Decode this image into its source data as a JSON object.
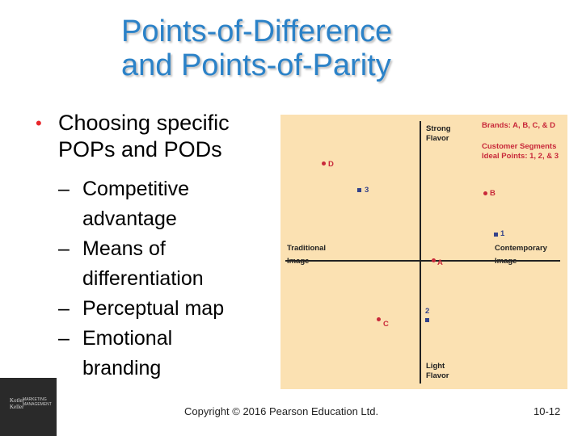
{
  "title": {
    "line1": "Points-of-Difference",
    "line2": "and Points-of-Parity"
  },
  "bullets": {
    "main_line1": "Choosing specific",
    "main_line2": "POPs and PODs",
    "subs": [
      {
        "line1": "Competitive",
        "line2": "advantage"
      },
      {
        "line1": "Means of",
        "line2": "differentiation"
      },
      {
        "line1": "Perceptual map",
        "line2": ""
      },
      {
        "line1": "Emotional",
        "line2": "branding"
      }
    ]
  },
  "perceptual_map": {
    "axes": {
      "top": [
        "Strong",
        "Flavor"
      ],
      "bottom": [
        "Light",
        "Flavor"
      ],
      "left": [
        "Traditional",
        "Image"
      ],
      "right": [
        "Contemporary",
        "Image"
      ]
    },
    "legend": {
      "brands": "Brands: A, B, C, & D",
      "segments_line1": "Customer Segments",
      "segments_line2": "Ideal Points: 1, 2, & 3"
    },
    "brands": [
      {
        "label": "D"
      },
      {
        "label": "B"
      },
      {
        "label": "A"
      },
      {
        "label": "C"
      }
    ],
    "ideal_points": [
      {
        "label": "3"
      },
      {
        "label": "1"
      },
      {
        "label": "2"
      }
    ],
    "colors": {
      "background": "#fbe1b2",
      "brand": "#c8283a",
      "ideal": "#34428a"
    }
  },
  "logo": {
    "publisher_line1": "Kotler",
    "publisher_line2": "Keller",
    "sub_line1": "MARKETING",
    "sub_line2": "MANAGEMENT"
  },
  "footer": {
    "copyright": "Copyright © 2016 Pearson Education Ltd.",
    "page": "10-12"
  }
}
